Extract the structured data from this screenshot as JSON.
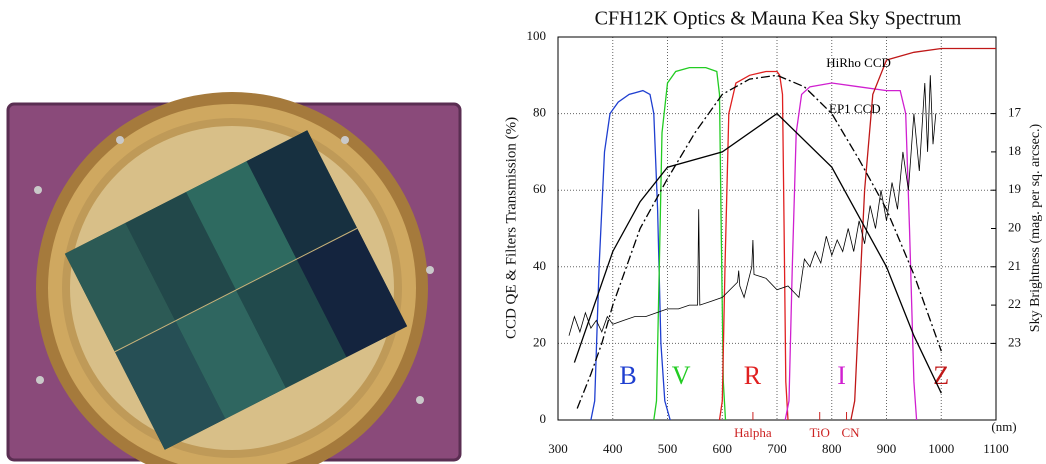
{
  "chart_data": {
    "type": "line",
    "title": "CFH12K Optics & Mauna Kea Sky Spectrum",
    "xlabel": "(nm)",
    "ylabel": "CCD QE & Filters Transmission (%)",
    "y2label": "Sky Brightness (mag. per sq. arcsec.)",
    "xlim": [
      300,
      1100
    ],
    "xticks": [
      300,
      400,
      500,
      600,
      700,
      800,
      900,
      1000,
      1100
    ],
    "ylim": [
      0,
      100
    ],
    "yticks": [
      0,
      20,
      40,
      60,
      80,
      100
    ],
    "y2lim": [
      25,
      15
    ],
    "y2ticks": [
      17,
      18,
      19,
      20,
      21,
      22,
      23
    ],
    "grid": true,
    "series": [
      {
        "name": "B",
        "color": "#1f3fd0",
        "x": [
          360,
          367,
          375,
          385,
          395,
          410,
          430,
          455,
          468,
          475,
          482,
          488,
          495,
          505
        ],
        "values": [
          0,
          5,
          40,
          70,
          80,
          83,
          85,
          86,
          85,
          80,
          55,
          20,
          5,
          0
        ]
      },
      {
        "name": "V",
        "color": "#22cc22",
        "x": [
          475,
          480,
          485,
          490,
          500,
          515,
          540,
          570,
          590,
          595,
          598,
          602,
          606
        ],
        "values": [
          0,
          5,
          40,
          75,
          88,
          91,
          92,
          92,
          91,
          85,
          50,
          10,
          0
        ]
      },
      {
        "name": "R",
        "color": "#e02020",
        "x": [
          595,
          600,
          605,
          612,
          625,
          650,
          680,
          700,
          705,
          710,
          713,
          716,
          720
        ],
        "values": [
          0,
          5,
          40,
          80,
          88,
          90,
          91,
          91,
          90,
          85,
          50,
          10,
          0
        ]
      },
      {
        "name": "I",
        "color": "#d020d0",
        "x": [
          715,
          722,
          728,
          735,
          745,
          760,
          800,
          850,
          900,
          925,
          935,
          942,
          950,
          955
        ],
        "values": [
          0,
          5,
          40,
          75,
          85,
          87,
          88,
          87,
          86,
          86,
          80,
          50,
          10,
          0
        ]
      },
      {
        "name": "Z",
        "color": "#c01818",
        "x": [
          835,
          842,
          850,
          860,
          875,
          900,
          950,
          1000,
          1100
        ],
        "values": [
          0,
          5,
          30,
          60,
          85,
          94,
          96,
          97,
          97
        ]
      },
      {
        "name": "HiRho CCD",
        "color": "#000000",
        "linestyle": "dashdot",
        "x": [
          335,
          360,
          380,
          400,
          450,
          500,
          550,
          600,
          650,
          700,
          750,
          800,
          850,
          900,
          950,
          1000
        ],
        "values": [
          3,
          12,
          20,
          30,
          50,
          63,
          75,
          85,
          89,
          90,
          87,
          80,
          68,
          55,
          38,
          18
        ]
      },
      {
        "name": "EP1 CCD",
        "color": "#000000",
        "x": [
          330,
          400,
          450,
          500,
          600,
          700,
          800,
          900,
          950,
          1000
        ],
        "values": [
          15,
          44,
          57,
          66,
          70,
          80,
          66,
          40,
          22,
          7
        ]
      },
      {
        "color": "#000000",
        "axis": "y2",
        "x": [
          320,
          330,
          340,
          350,
          360,
          370,
          380,
          390,
          400,
          420,
          440,
          460,
          480,
          500,
          520,
          540,
          555,
          557,
          559,
          580,
          600,
          628,
          630,
          632,
          640,
          654,
          656,
          658,
          680,
          700,
          720,
          740,
          750,
          760,
          770,
          780,
          790,
          800,
          810,
          820,
          830,
          840,
          850,
          860,
          870,
          880,
          890,
          900,
          910,
          920,
          930,
          940,
          950,
          960,
          970,
          975,
          980,
          985,
          990
        ],
        "values": [
          22.8,
          22.3,
          22.7,
          22.2,
          22.6,
          22.4,
          22.7,
          22.3,
          22.5,
          22.4,
          22.3,
          22.3,
          22.2,
          22.1,
          22.1,
          22.0,
          22.0,
          19.5,
          22.0,
          21.9,
          21.8,
          21.4,
          21.1,
          21.5,
          21.8,
          21.0,
          20.3,
          21.2,
          21.3,
          21.6,
          21.5,
          21.8,
          20.8,
          21.0,
          20.6,
          20.9,
          20.2,
          20.7,
          20.3,
          20.6,
          20.0,
          20.6,
          19.8,
          20.4,
          19.4,
          20.0,
          19.0,
          19.8,
          18.8,
          19.5,
          18.0,
          19.0,
          17.0,
          18.5,
          16.2,
          18.0,
          16.0,
          17.8,
          17.0
        ]
      }
    ],
    "x_annotations": [
      {
        "label": "Halpha",
        "value": 656
      },
      {
        "label": "TiO",
        "value": 778
      },
      {
        "label": "CN",
        "value": 827
      }
    ]
  }
}
